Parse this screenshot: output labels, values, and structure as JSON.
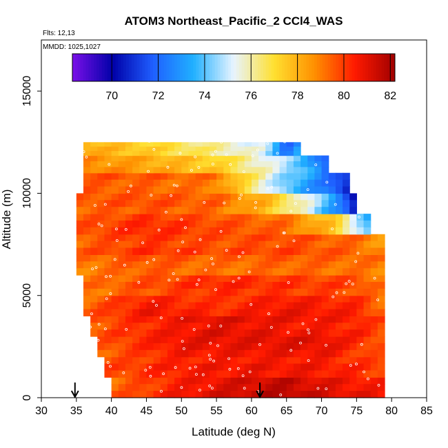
{
  "chart_data": {
    "type": "heatmap",
    "title": "ATOM3 Northeast_Pacific_2 CCl4_WAS",
    "flights_label": "Flts: 12,13",
    "dates_label": "MMDD: 1025,1027",
    "xlabel": "Latitude (deg N)",
    "ylabel": "Altitude (m)",
    "xlim": [
      30,
      85
    ],
    "ylim": [
      0,
      17500
    ],
    "x_ticks": [
      "30",
      "35",
      "40",
      "45",
      "50",
      "55",
      "60",
      "65",
      "70",
      "75",
      "80",
      "85"
    ],
    "y_ticks": [
      "0",
      "5000",
      "10000",
      "15000"
    ],
    "colorbar": {
      "min": 68.3,
      "max": 82.2,
      "ticks": [
        "70",
        "72",
        "74",
        "76",
        "78",
        "80",
        "82"
      ],
      "colors": [
        "#7a10e8",
        "#0000a8",
        "#1f5fff",
        "#20b0ff",
        "#e8f4ff",
        "#ffe030",
        "#ff9000",
        "#ff1a00",
        "#a00000"
      ]
    },
    "arrows_at_latitude": [
      34.8,
      61.2
    ],
    "field_description": "CCl4 mixing ratio (ppt) by latitude and altitude",
    "altitude_bands": [
      {
        "alt_m": 500,
        "lat_min": 40,
        "lat_max": 79,
        "values": [
          [
            40,
            79.2
          ],
          [
            50,
            80.5
          ],
          [
            60,
            81.3
          ],
          [
            65,
            81.6
          ],
          [
            70,
            81.0
          ],
          [
            79,
            80.4
          ]
        ]
      },
      {
        "alt_m": 1500,
        "lat_min": 39,
        "lat_max": 79,
        "values": [
          [
            39,
            79.8
          ],
          [
            50,
            80.6
          ],
          [
            60,
            80.8
          ],
          [
            70,
            80.7
          ],
          [
            79,
            80.0
          ]
        ]
      },
      {
        "alt_m": 2500,
        "lat_min": 38,
        "lat_max": 79,
        "values": [
          [
            38,
            79.5
          ],
          [
            50,
            80.8
          ],
          [
            60,
            80.9
          ],
          [
            70,
            81.0
          ],
          [
            79,
            79.6
          ]
        ]
      },
      {
        "alt_m": 3500,
        "lat_min": 37,
        "lat_max": 79,
        "values": [
          [
            37,
            79.4
          ],
          [
            45,
            80.2
          ],
          [
            55,
            80.9
          ],
          [
            65,
            80.6
          ],
          [
            75,
            80.3
          ],
          [
            79,
            79.5
          ]
        ]
      },
      {
        "alt_m": 4500,
        "lat_min": 36,
        "lat_max": 79,
        "values": [
          [
            36,
            79.3
          ],
          [
            45,
            80.6
          ],
          [
            55,
            80.1
          ],
          [
            65,
            80.7
          ],
          [
            75,
            80.3
          ],
          [
            79,
            79.2
          ]
        ]
      },
      {
        "alt_m": 5500,
        "lat_min": 36,
        "lat_max": 79,
        "values": [
          [
            36,
            79.2
          ],
          [
            45,
            79.8
          ],
          [
            55,
            80.4
          ],
          [
            65,
            80.2
          ],
          [
            75,
            79.9
          ],
          [
            79,
            79.1
          ]
        ]
      },
      {
        "alt_m": 6500,
        "lat_min": 35,
        "lat_max": 79,
        "values": [
          [
            35,
            79.0
          ],
          [
            45,
            79.6
          ],
          [
            55,
            79.2
          ],
          [
            65,
            79.4
          ],
          [
            75,
            79.2
          ],
          [
            79,
            79.0
          ]
        ]
      },
      {
        "alt_m": 7500,
        "lat_min": 35,
        "lat_max": 79,
        "values": [
          [
            35,
            79.3
          ],
          [
            45,
            80.0
          ],
          [
            55,
            79.6
          ],
          [
            65,
            79.7
          ],
          [
            75,
            79.2
          ],
          [
            79,
            78.4
          ]
        ]
      },
      {
        "alt_m": 8500,
        "lat_min": 35,
        "lat_max": 77,
        "values": [
          [
            35,
            79.6
          ],
          [
            45,
            80.3
          ],
          [
            55,
            79.8
          ],
          [
            65,
            79.3
          ],
          [
            72,
            77.5
          ],
          [
            77,
            73.5
          ]
        ]
      },
      {
        "alt_m": 9500,
        "lat_min": 35,
        "lat_max": 75,
        "values": [
          [
            35,
            79.6
          ],
          [
            45,
            79.8
          ],
          [
            55,
            79.5
          ],
          [
            62,
            78.0
          ],
          [
            68,
            75.5
          ],
          [
            73,
            72.5
          ],
          [
            75,
            70.0
          ]
        ]
      },
      {
        "alt_m": 10500,
        "lat_min": 36,
        "lat_max": 74,
        "values": [
          [
            36,
            79.5
          ],
          [
            45,
            79.4
          ],
          [
            55,
            79.0
          ],
          [
            60,
            76.5
          ],
          [
            65,
            74.0
          ],
          [
            70,
            72.5
          ],
          [
            74,
            70.5
          ]
        ]
      },
      {
        "alt_m": 11500,
        "lat_min": 36,
        "lat_max": 71,
        "values": [
          [
            36,
            78.8
          ],
          [
            45,
            78.2
          ],
          [
            55,
            77.3
          ],
          [
            62,
            75.5
          ],
          [
            67,
            74.0
          ],
          [
            71,
            71.5
          ]
        ]
      },
      {
        "alt_m": 12200,
        "lat_min": 36,
        "lat_max": 67,
        "values": [
          [
            36,
            78.3
          ],
          [
            45,
            77.5
          ],
          [
            55,
            76.3
          ],
          [
            62,
            75.2
          ],
          [
            65,
            72.0
          ],
          [
            67,
            73.5
          ]
        ]
      }
    ]
  }
}
